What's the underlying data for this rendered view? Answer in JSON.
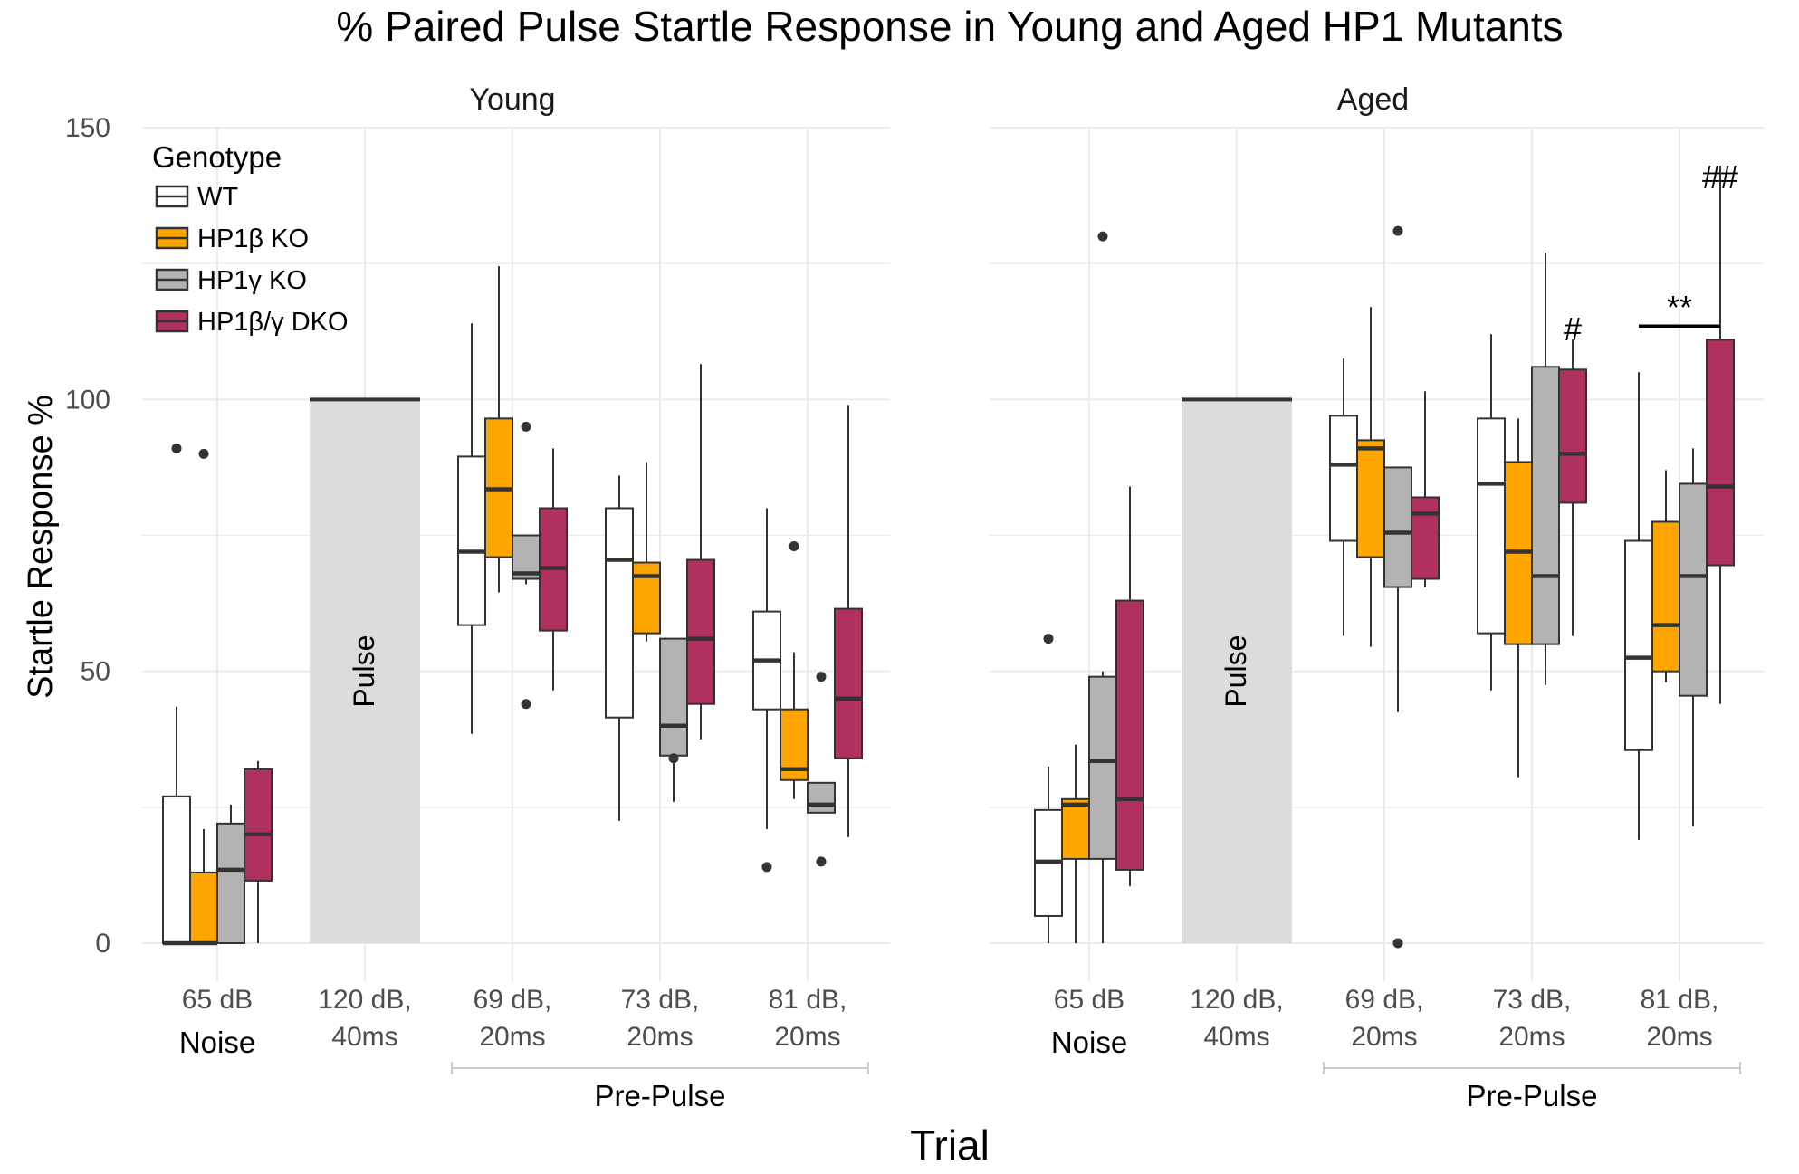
{
  "chart_data": {
    "type": "boxplot",
    "title": "% Paired Pulse Startle Response in Young and Aged HP1 Mutants",
    "xlabel": "Trial",
    "ylabel": "Startle Response %",
    "ylim": [
      -5,
      150
    ],
    "yticks": [
      0,
      50,
      100,
      150
    ],
    "grid": true,
    "legend": {
      "title": "Genotype",
      "position": "top-left",
      "entries": [
        {
          "name": "WT",
          "color": "#ffffff"
        },
        {
          "name": "HP1β KO",
          "color": "#ffa500"
        },
        {
          "name": "HP1γ KO",
          "color": "#b3b3b3"
        },
        {
          "name": "HP1β/γ DKO",
          "color": "#b03060"
        }
      ]
    },
    "categories": [
      {
        "line1": "65 dB",
        "line2": ""
      },
      {
        "line1": "120 dB,",
        "line2": "40ms"
      },
      {
        "line1": "69 dB,",
        "line2": "20ms"
      },
      {
        "line1": "73 dB,",
        "line2": "20ms"
      },
      {
        "line1": "81 dB,",
        "line2": "20ms"
      }
    ],
    "group_labels": {
      "noise": "Noise",
      "prepulse": "Pre-Pulse"
    },
    "pulse_label": "Pulse",
    "pulse_value": 100,
    "facets": [
      {
        "name": "Young",
        "boxes": [
          [
            {
              "q1": 0,
              "median": 0,
              "q3": 27,
              "low": 0,
              "high": 43.5,
              "outliers": [
                91
              ]
            },
            {
              "q1": 0,
              "median": 0,
              "q3": 13,
              "low": 0,
              "high": 21,
              "outliers": [
                90
              ]
            },
            {
              "q1": 0,
              "median": 13.5,
              "q3": 22,
              "low": 0,
              "high": 25.5,
              "outliers": []
            },
            {
              "q1": 11.5,
              "median": 20,
              "q3": 32,
              "low": 0,
              "high": 33.5,
              "outliers": []
            }
          ],
          [],
          [
            {
              "q1": 58.5,
              "median": 72,
              "q3": 89.5,
              "low": 38.5,
              "high": 114,
              "outliers": []
            },
            {
              "q1": 71,
              "median": 83.5,
              "q3": 96.5,
              "low": 64.5,
              "high": 124.5,
              "outliers": []
            },
            {
              "q1": 67,
              "median": 68,
              "q3": 75,
              "low": 66,
              "high": 75,
              "outliers": [
                95,
                44
              ]
            },
            {
              "q1": 57.5,
              "median": 69,
              "q3": 80,
              "low": 46.5,
              "high": 91,
              "outliers": []
            }
          ],
          [
            {
              "q1": 41.5,
              "median": 70.5,
              "q3": 80,
              "low": 22.5,
              "high": 86,
              "outliers": []
            },
            {
              "q1": 57,
              "median": 67.5,
              "q3": 70,
              "low": 55.5,
              "high": 88.5,
              "outliers": []
            },
            {
              "q1": 34.5,
              "median": 40,
              "q3": 56,
              "low": 26,
              "high": 56,
              "outliers": [
                34
              ]
            },
            {
              "q1": 44,
              "median": 56,
              "q3": 70.5,
              "low": 37.5,
              "high": 106.5,
              "outliers": []
            }
          ],
          [
            {
              "q1": 43,
              "median": 52,
              "q3": 61,
              "low": 21,
              "high": 80,
              "outliers": [
                14
              ]
            },
            {
              "q1": 30,
              "median": 32,
              "q3": 43,
              "low": 26.5,
              "high": 53.5,
              "outliers": [
                73
              ]
            },
            {
              "q1": 24,
              "median": 25.5,
              "q3": 29.5,
              "low": 24,
              "high": 29.5,
              "outliers": [
                49,
                15
              ]
            },
            {
              "q1": 34,
              "median": 45,
              "q3": 61.5,
              "low": 19.5,
              "high": 99,
              "outliers": []
            }
          ]
        ],
        "annotations": []
      },
      {
        "name": "Aged",
        "boxes": [
          [
            {
              "q1": 5,
              "median": 15,
              "q3": 24.5,
              "low": 0,
              "high": 32.5,
              "outliers": [
                56
              ]
            },
            {
              "q1": 15.5,
              "median": 25.5,
              "q3": 26.5,
              "low": 0,
              "high": 36.5,
              "outliers": []
            },
            {
              "q1": 15.5,
              "median": 33.5,
              "q3": 49,
              "low": 0,
              "high": 50,
              "outliers": [
                130
              ]
            },
            {
              "q1": 13.5,
              "median": 26.5,
              "q3": 63,
              "low": 10.5,
              "high": 84,
              "outliers": []
            }
          ],
          [],
          [
            {
              "q1": 74,
              "median": 88,
              "q3": 97,
              "low": 56.5,
              "high": 107.5,
              "outliers": []
            },
            {
              "q1": 71,
              "median": 91,
              "q3": 92.5,
              "low": 54.5,
              "high": 117,
              "outliers": []
            },
            {
              "q1": 65.5,
              "median": 75.5,
              "q3": 87.5,
              "low": 42.5,
              "high": 87.5,
              "outliers": [
                131,
                0
              ]
            },
            {
              "q1": 67,
              "median": 79,
              "q3": 82,
              "low": 65.5,
              "high": 101.5,
              "outliers": []
            }
          ],
          [
            {
              "q1": 57,
              "median": 84.5,
              "q3": 96.5,
              "low": 46.5,
              "high": 112,
              "outliers": []
            },
            {
              "q1": 55,
              "median": 72,
              "q3": 88.5,
              "low": 30.5,
              "high": 96.5,
              "outliers": []
            },
            {
              "q1": 55,
              "median": 67.5,
              "q3": 106,
              "low": 47.5,
              "high": 127,
              "outliers": []
            },
            {
              "q1": 81,
              "median": 90,
              "q3": 105.5,
              "low": 56.5,
              "high": 111,
              "outliers": []
            }
          ],
          [
            {
              "q1": 35.5,
              "median": 52.5,
              "q3": 74,
              "low": 19,
              "high": 105,
              "outliers": []
            },
            {
              "q1": 50,
              "median": 58.5,
              "q3": 77.5,
              "low": 48,
              "high": 87,
              "outliers": []
            },
            {
              "q1": 45.5,
              "median": 67.5,
              "q3": 84.5,
              "low": 21.5,
              "high": 91,
              "outliers": []
            },
            {
              "q1": 69.5,
              "median": 84,
              "q3": 111,
              "low": 44,
              "high": 143,
              "outliers": []
            }
          ]
        ],
        "annotations": [
          {
            "text": "#",
            "category": 3,
            "box": 3,
            "value": 113
          },
          {
            "text": "**",
            "category": 4,
            "box_from": 0,
            "box_to": 3,
            "value": 113.5,
            "bracket": true
          },
          {
            "text": "##",
            "category": 4,
            "box": 3,
            "value": 141
          }
        ]
      }
    ]
  }
}
